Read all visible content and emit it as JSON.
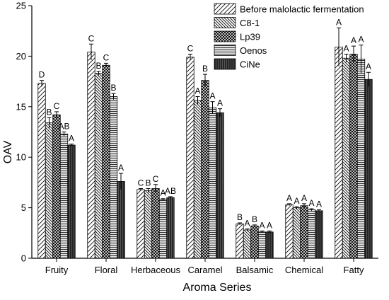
{
  "chart_data": {
    "type": "bar",
    "xlabel": "Aroma Series",
    "ylabel": "OAV",
    "ylim": [
      0,
      25
    ],
    "yticks": [
      0,
      5,
      10,
      15,
      20,
      25
    ],
    "legend_position": "top-right",
    "categories": [
      "Fruity",
      "Floral",
      "Herbaceous",
      "Caramel",
      "Balsamic",
      "Chemical",
      "Fatty"
    ],
    "series": [
      {
        "name": "Before malolactic fermentation",
        "pattern": "diag-light",
        "values": [
          17.3,
          20.4,
          6.8,
          19.9,
          3.4,
          5.3,
          20.9
        ],
        "errors": [
          0.3,
          0.8,
          0.1,
          0.3,
          0.1,
          0.1,
          1.9
        ],
        "labels": [
          "D",
          "C",
          "C",
          "C",
          "B",
          "A",
          "A"
        ]
      },
      {
        "name": "C8-1",
        "pattern": "diag-dense",
        "values": [
          13.4,
          18.3,
          6.7,
          15.6,
          2.8,
          5.0,
          19.8
        ],
        "errors": [
          0.5,
          0.2,
          0.2,
          0.4,
          0.1,
          0.1,
          0.4
        ],
        "labels": [
          "B",
          "B",
          "B",
          "A",
          "A",
          "A",
          "A"
        ]
      },
      {
        "name": "Lp39",
        "pattern": "crosshatch",
        "values": [
          14.2,
          19.1,
          6.9,
          17.6,
          3.2,
          5.2,
          20.2
        ],
        "errors": [
          0.3,
          0.2,
          0.4,
          0.6,
          0.1,
          0.2,
          0.8
        ],
        "labels": [
          "C",
          "C",
          "C",
          "B",
          "B",
          "A",
          "A"
        ]
      },
      {
        "name": "Oenos",
        "pattern": "horizontal",
        "values": [
          12.3,
          16.0,
          5.8,
          14.9,
          2.6,
          4.8,
          19.7
        ],
        "errors": [
          0.2,
          0.3,
          0.1,
          0.6,
          0.1,
          0.1,
          1.4
        ],
        "labels": [
          "AB",
          "B",
          "A",
          "A",
          "A",
          "A",
          "A"
        ]
      },
      {
        "name": "CiNe",
        "pattern": "vertical-dark",
        "values": [
          11.2,
          7.6,
          6.0,
          14.4,
          2.6,
          4.7,
          17.7
        ],
        "errors": [
          0.1,
          0.8,
          0.1,
          0.4,
          0.1,
          0.1,
          0.7
        ],
        "labels": [
          "A",
          "A",
          "AB",
          "A",
          "A",
          "A",
          "A"
        ]
      }
    ]
  }
}
